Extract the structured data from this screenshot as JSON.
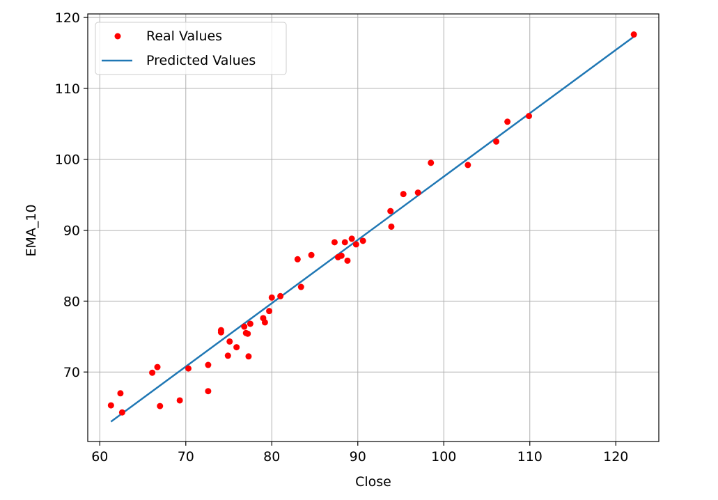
{
  "chart_data": {
    "type": "scatter",
    "title": "",
    "xlabel": "Close",
    "ylabel": "EMA_10",
    "xlim": [
      58.6,
      125.0
    ],
    "ylim": [
      60.2,
      120.5
    ],
    "xticks": [
      60,
      70,
      80,
      90,
      100,
      110,
      120
    ],
    "yticks": [
      70,
      80,
      90,
      100,
      110,
      120
    ],
    "grid": true,
    "legend_position": "top-left",
    "series": [
      {
        "name": "Real Values",
        "kind": "scatter",
        "color": "#ff0000",
        "points": [
          [
            61.3,
            65.3
          ],
          [
            62.4,
            67.0
          ],
          [
            62.6,
            64.3
          ],
          [
            66.1,
            69.9
          ],
          [
            66.7,
            70.7
          ],
          [
            67.0,
            65.2
          ],
          [
            69.3,
            66.0
          ],
          [
            70.3,
            70.5
          ],
          [
            72.6,
            71.0
          ],
          [
            72.6,
            67.3
          ],
          [
            74.1,
            75.9
          ],
          [
            74.1,
            75.6
          ],
          [
            74.9,
            72.3
          ],
          [
            75.1,
            74.3
          ],
          [
            75.9,
            73.5
          ],
          [
            76.8,
            76.4
          ],
          [
            77.0,
            75.5
          ],
          [
            77.2,
            75.4
          ],
          [
            77.3,
            72.2
          ],
          [
            77.5,
            76.8
          ],
          [
            79.0,
            77.6
          ],
          [
            79.2,
            77.0
          ],
          [
            79.7,
            78.6
          ],
          [
            80.0,
            80.5
          ],
          [
            81.0,
            80.7
          ],
          [
            83.0,
            85.9
          ],
          [
            83.4,
            82.0
          ],
          [
            84.6,
            86.5
          ],
          [
            87.3,
            88.3
          ],
          [
            87.7,
            86.2
          ],
          [
            88.1,
            86.4
          ],
          [
            88.5,
            88.3
          ],
          [
            88.8,
            85.7
          ],
          [
            89.3,
            88.8
          ],
          [
            89.8,
            88.0
          ],
          [
            90.6,
            88.5
          ],
          [
            93.8,
            92.7
          ],
          [
            93.9,
            90.5
          ],
          [
            95.3,
            95.1
          ],
          [
            97.0,
            95.3
          ],
          [
            98.5,
            99.5
          ],
          [
            102.8,
            99.2
          ],
          [
            106.1,
            102.5
          ],
          [
            107.4,
            105.3
          ],
          [
            109.9,
            106.1
          ],
          [
            122.1,
            117.6
          ]
        ]
      },
      {
        "name": "Predicted Values",
        "kind": "line",
        "color": "#1f77b4",
        "x": [
          61.3,
          122.1
        ],
        "y": [
          63.0,
          117.3
        ]
      }
    ]
  }
}
